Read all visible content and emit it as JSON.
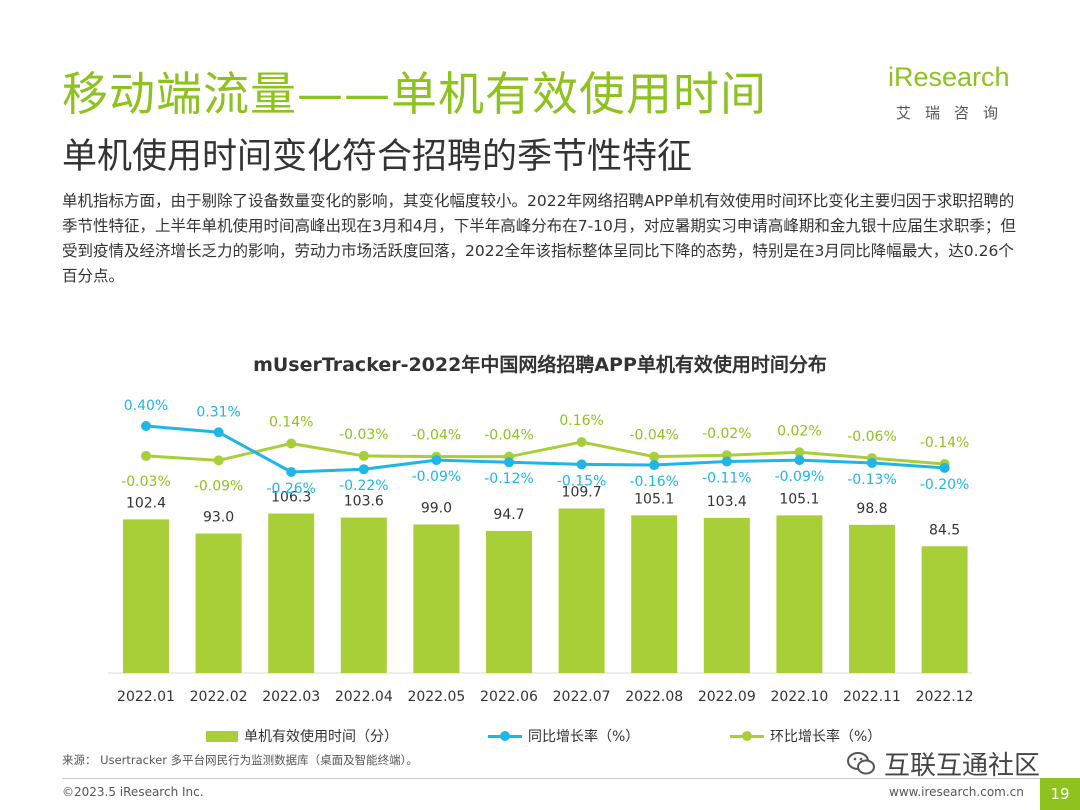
{
  "header": {
    "title": "移动端流量——单机有效使用时间",
    "subtitle": "单机使用时间变化符合招聘的季节性特征"
  },
  "logo": {
    "word": "iResearch",
    "cn": "艾瑞咨询"
  },
  "description": "单机指标方面，由于剔除了设备数量变化的影响，其变化幅度较小。2022年网络招聘APP单机有效使用时间环比变化主要归因于求职招聘的季节性特征，上半年单机使用时间高峰出现在3月和4月，下半年高峰分布在7-10月，对应暑期实习申请高峰期和金九银十应届生求职季；但受到疫情及经济增长乏力的影响，劳动力市场活跃度回落，2022全年该指标整体呈同比下降的态势，特别是在3月同比降幅最大，达0.26个百分点。",
  "chart_title": "mUserTracker-2022年中国网络招聘APP单机有效使用时间分布",
  "chart_data": {
    "type": "bar",
    "title": "mUserTracker-2022年中国网络招聘APP单机有效使用时间分布",
    "categories": [
      "2022.01",
      "2022.02",
      "2022.03",
      "2022.04",
      "2022.05",
      "2022.06",
      "2022.07",
      "2022.08",
      "2022.09",
      "2022.10",
      "2022.11",
      "2022.12"
    ],
    "series": [
      {
        "name": "单机有效使用时间（分）",
        "type": "bar",
        "color": "#a8cf38",
        "values": [
          102.4,
          93.0,
          106.3,
          103.6,
          99.0,
          94.7,
          109.7,
          105.1,
          103.4,
          105.1,
          98.8,
          84.5
        ],
        "labels": [
          "102.4",
          "93.0",
          "106.3",
          "103.6",
          "99.0",
          "94.7",
          "109.7",
          "105.1",
          "103.4",
          "105.1",
          "98.8",
          "84.5"
        ]
      },
      {
        "name": "同比增长率（%）",
        "type": "line",
        "color": "#1fb5e6",
        "values": [
          0.4,
          0.31,
          -0.26,
          -0.22,
          -0.09,
          -0.12,
          -0.15,
          -0.16,
          -0.11,
          -0.09,
          -0.13,
          -0.2
        ],
        "labels": [
          "0.40%",
          "0.31%",
          "-0.26%",
          "-0.22%",
          "-0.09%",
          "-0.12%",
          "-0.15%",
          "-0.16%",
          "-0.11%",
          "-0.09%",
          "-0.13%",
          "-0.20%"
        ]
      },
      {
        "name": "环比增长率（%）",
        "type": "line",
        "color": "#a8cf38",
        "values": [
          -0.03,
          -0.09,
          0.14,
          -0.03,
          -0.04,
          -0.04,
          0.16,
          -0.04,
          -0.02,
          0.02,
          -0.06,
          -0.14
        ],
        "labels": [
          "-0.03%",
          "-0.09%",
          "0.14%",
          "-0.03%",
          "-0.04%",
          "-0.04%",
          "0.16%",
          "-0.04%",
          "-0.02%",
          "0.02%",
          "-0.06%",
          "-0.14%"
        ]
      }
    ],
    "legend": "bottom"
  },
  "source": "来源： Usertracker 多平台网民行为监测数据库（桌面及智能终端）。",
  "watermark": "互联互通社区",
  "footer": {
    "copyright": "©2023.5 iResearch Inc.",
    "website": "www.iresearch.com.cn",
    "page": "19"
  }
}
